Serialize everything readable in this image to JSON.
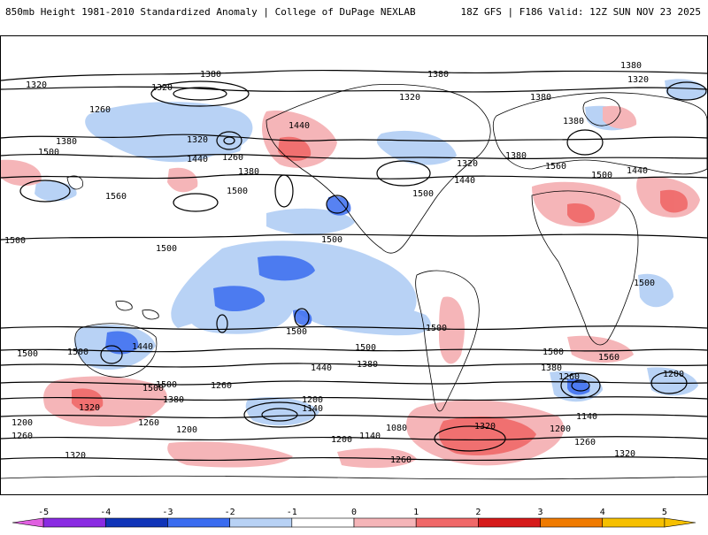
{
  "header": {
    "title": "850mb Height 1981-2010 Standardized Anomaly | College of DuPage NEXLAB",
    "run_info": "18Z GFS | F186 Valid: 12Z SUN NOV 23 2025"
  },
  "colorbar": {
    "ticks": [
      "-5",
      "-4",
      "-3",
      "-2",
      "-1",
      "0",
      "1",
      "2",
      "3",
      "4",
      "5"
    ],
    "colors": [
      "#e060e0",
      "#8a2be2",
      "#1034b8",
      "#3a6cf0",
      "#b8d2f5",
      "#ffffff",
      "#f5b5b8",
      "#f06868",
      "#d61a1a",
      "#f07b00",
      "#f6c000"
    ]
  },
  "map": {
    "contour_labels": [
      {
        "text": "1380"
      },
      {
        "text": "1320"
      },
      {
        "text": "1260"
      },
      {
        "text": "1380"
      },
      {
        "text": "1500"
      },
      {
        "text": "1320"
      },
      {
        "text": "1260"
      },
      {
        "text": "1380"
      },
      {
        "text": "1440"
      },
      {
        "text": "1440"
      },
      {
        "text": "1500"
      },
      {
        "text": "1560"
      },
      {
        "text": "1500"
      },
      {
        "text": "1500"
      },
      {
        "text": "1500"
      },
      {
        "text": "1380"
      },
      {
        "text": "1320"
      },
      {
        "text": "1380"
      },
      {
        "text": "1320"
      },
      {
        "text": "1380"
      },
      {
        "text": "1440"
      },
      {
        "text": "1500"
      },
      {
        "text": "1380"
      },
      {
        "text": "1320"
      },
      {
        "text": "1380"
      },
      {
        "text": "1560"
      },
      {
        "text": "1500"
      },
      {
        "text": "1440"
      },
      {
        "text": "1500"
      },
      {
        "text": "1500"
      },
      {
        "text": "1500"
      },
      {
        "text": "1500"
      },
      {
        "text": "1440"
      },
      {
        "text": "1500"
      },
      {
        "text": "1380"
      },
      {
        "text": "1320"
      },
      {
        "text": "1260"
      },
      {
        "text": "1200"
      },
      {
        "text": "1140"
      },
      {
        "text": "1080"
      },
      {
        "text": "1200"
      },
      {
        "text": "1140"
      },
      {
        "text": "1260"
      },
      {
        "text": "1200"
      },
      {
        "text": "1260"
      },
      {
        "text": "1320"
      },
      {
        "text": "1200"
      },
      {
        "text": "1260"
      },
      {
        "text": "1320"
      },
      {
        "text": "1380"
      },
      {
        "text": "1500"
      },
      {
        "text": "1440"
      },
      {
        "text": "1380"
      },
      {
        "text": "1260"
      },
      {
        "text": "1200"
      },
      {
        "text": "1140"
      },
      {
        "text": "1200"
      },
      {
        "text": "1260"
      },
      {
        "text": "1320"
      },
      {
        "text": "1320"
      },
      {
        "text": "1560"
      },
      {
        "text": "1500"
      },
      {
        "text": "1500"
      },
      {
        "text": "1500"
      }
    ]
  }
}
